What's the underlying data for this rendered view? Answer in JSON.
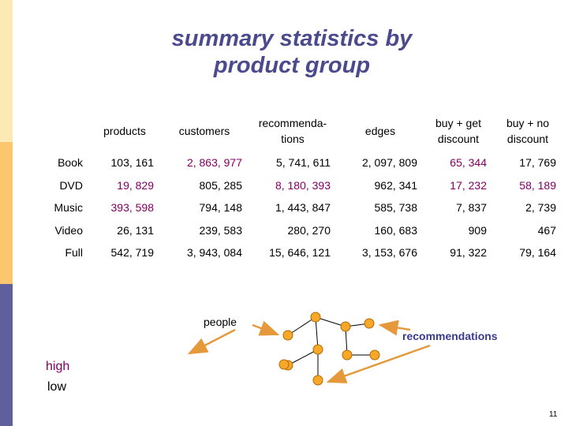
{
  "slide": {
    "title_line1": "summary statistics by",
    "title_line2": "product group",
    "page_number": "11"
  },
  "table": {
    "headers": [
      "products",
      "customers",
      "recommenda-tions",
      "edges",
      "buy + get discount",
      "buy + no discount"
    ],
    "rows": [
      {
        "label": "Book",
        "cells": [
          "103, 161",
          "2, 863, 977",
          "5, 741, 611",
          "2, 097, 809",
          "65, 344",
          "17, 769"
        ],
        "highlight": [
          false,
          true,
          false,
          false,
          true,
          false
        ]
      },
      {
        "label": "DVD",
        "cells": [
          "19, 829",
          "805, 285",
          "8, 180, 393",
          "962, 341",
          "17, 232",
          "58, 189"
        ],
        "highlight": [
          true,
          false,
          true,
          false,
          true,
          true
        ]
      },
      {
        "label": "Music",
        "cells": [
          "393, 598",
          "794, 148",
          "1, 443, 847",
          "585, 738",
          "7, 837",
          "2, 739"
        ],
        "highlight": [
          true,
          false,
          false,
          false,
          false,
          false
        ]
      },
      {
        "label": "Video",
        "cells": [
          "26, 131",
          "239, 583",
          "280, 270",
          "160, 683",
          "909",
          "467"
        ],
        "highlight": [
          false,
          false,
          false,
          false,
          false,
          false
        ]
      },
      {
        "label": "Full",
        "cells": [
          "542, 719",
          "3, 943, 084",
          "15, 646, 121",
          "3, 153, 676",
          "91, 322",
          "79, 164"
        ],
        "highlight": [
          false,
          false,
          false,
          false,
          false,
          false
        ]
      }
    ]
  },
  "diagram": {
    "people_label": "people",
    "recommendations_label": "recommendations"
  },
  "legend": {
    "high": "high",
    "low": "low"
  },
  "colors": {
    "title": "#4a4a8c",
    "highlight": "#800060",
    "node_fill": "#f7a829",
    "arrow": "#e5993b",
    "sidebar_top": "#fde9b4",
    "sidebar_mid": "#fbc66e",
    "sidebar_bottom": "#5f5f9e"
  }
}
